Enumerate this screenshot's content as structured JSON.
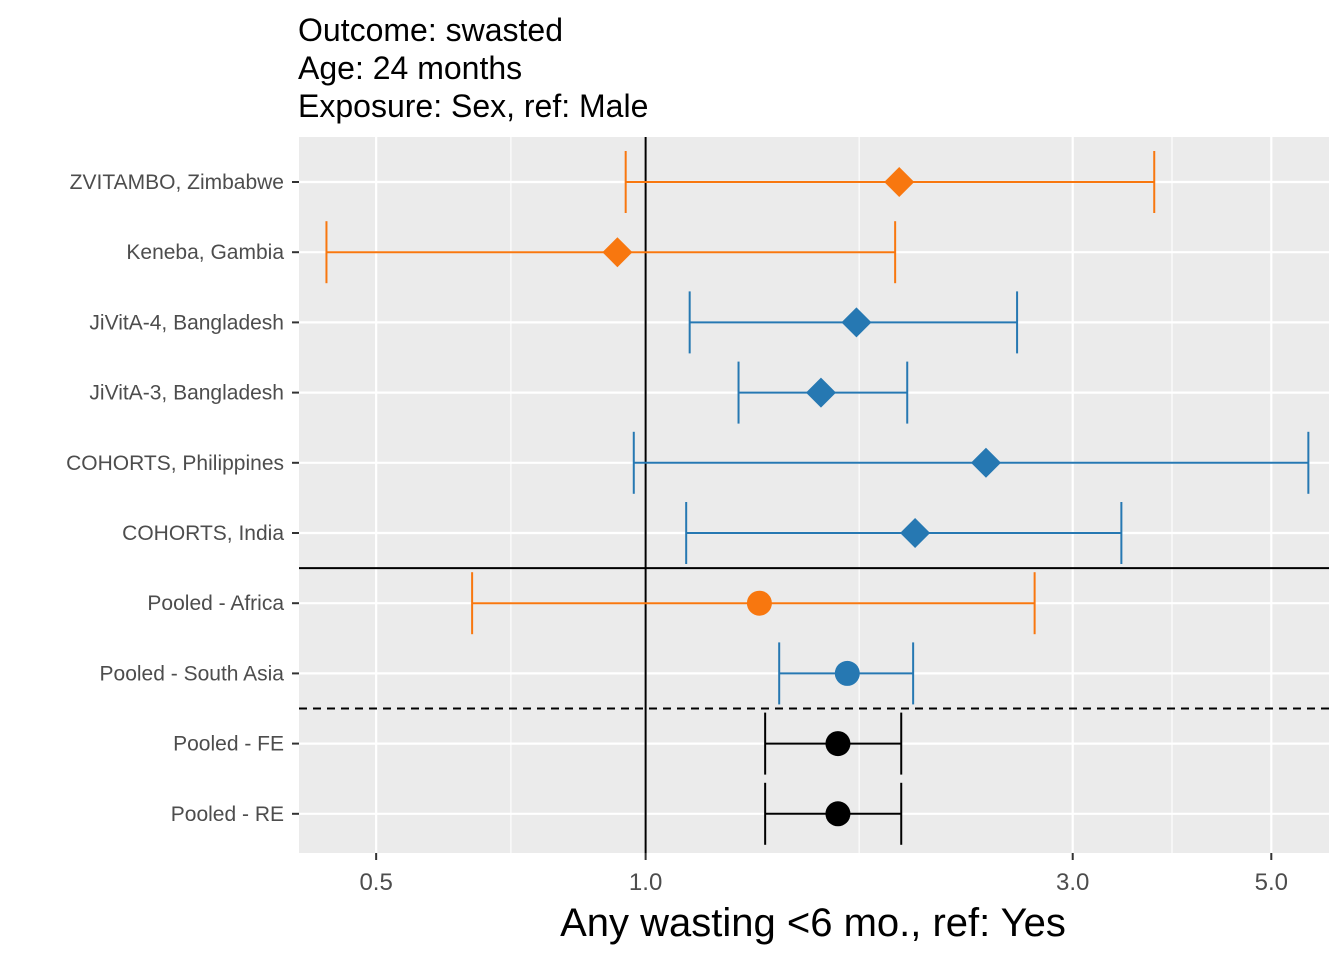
{
  "chart_data": {
    "type": "forest",
    "title_lines": [
      "Outcome: swasted",
      "Age: 24 months",
      "Exposure: Sex, ref: Male"
    ],
    "xlabel": "Any wasting  <6 mo., ref: Yes",
    "x_scale": "log",
    "x_ticks": [
      "0.5",
      "1.0",
      "3.0",
      "5.0"
    ],
    "x_tick_values": [
      0.5,
      1.0,
      3.0,
      5.0
    ],
    "xlim": [
      0.41,
      5.8
    ],
    "reference_line": 1.0,
    "colors": {
      "Africa": "#f8770f",
      "South Asia": "#2678b2",
      "Overall": "#000000"
    },
    "grid": true,
    "rows": [
      {
        "label": "ZVITAMBO, Zimbabwe",
        "est": 1.92,
        "lo": 0.95,
        "hi": 3.7,
        "group": "Africa",
        "shape": "diamond"
      },
      {
        "label": "Keneba, Gambia",
        "est": 0.93,
        "lo": 0.44,
        "hi": 1.9,
        "group": "Africa",
        "shape": "diamond"
      },
      {
        "label": "JiVitA-4, Bangladesh",
        "est": 1.72,
        "lo": 1.12,
        "hi": 2.6,
        "group": "South Asia",
        "shape": "diamond"
      },
      {
        "label": "JiVitA-3, Bangladesh",
        "est": 1.57,
        "lo": 1.27,
        "hi": 1.96,
        "group": "South Asia",
        "shape": "diamond"
      },
      {
        "label": "COHORTS, Philippines",
        "est": 2.4,
        "lo": 0.97,
        "hi": 5.5,
        "group": "South Asia",
        "shape": "diamond"
      },
      {
        "label": "COHORTS, India",
        "est": 2.0,
        "lo": 1.11,
        "hi": 3.4,
        "group": "South Asia",
        "shape": "diamond"
      },
      {
        "label": "Pooled - Africa",
        "est": 1.34,
        "lo": 0.64,
        "hi": 2.72,
        "group": "Africa",
        "shape": "circle"
      },
      {
        "label": "Pooled - South Asia",
        "est": 1.68,
        "lo": 1.41,
        "hi": 1.99,
        "group": "South Asia",
        "shape": "circle"
      },
      {
        "label": "Pooled - FE",
        "est": 1.64,
        "lo": 1.36,
        "hi": 1.93,
        "group": "Overall",
        "shape": "circle"
      },
      {
        "label": "Pooled - RE",
        "est": 1.64,
        "lo": 1.36,
        "hi": 1.93,
        "group": "Overall",
        "shape": "circle"
      }
    ]
  }
}
